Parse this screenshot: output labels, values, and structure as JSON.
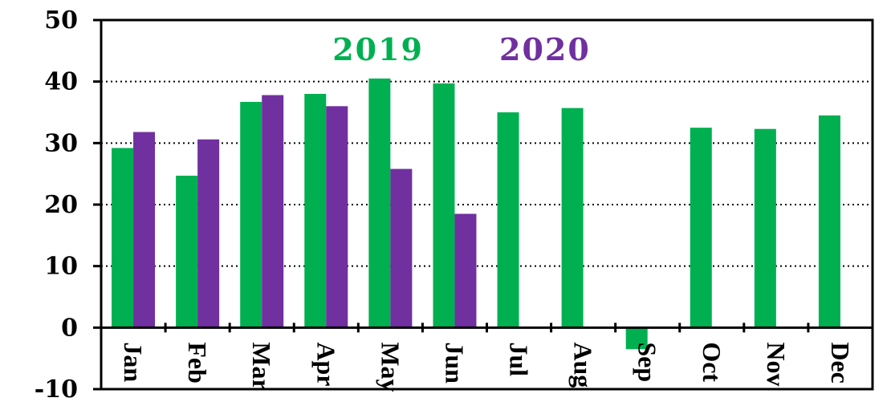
{
  "chart_data": {
    "type": "bar",
    "categories": [
      "Jan",
      "Feb",
      "Mar",
      "Apr",
      "May",
      "Jun",
      "Jul",
      "Aug",
      "Sep",
      "Oct",
      "Nov",
      "Dec"
    ],
    "series": [
      {
        "name": "2019",
        "color": "#00b050",
        "values": [
          29.2,
          24.7,
          36.7,
          38.0,
          40.5,
          39.7,
          35.0,
          35.7,
          -3.5,
          32.5,
          32.3,
          34.5
        ]
      },
      {
        "name": "2020",
        "color": "#7030a0",
        "values": [
          31.8,
          30.6,
          37.8,
          36.0,
          25.8,
          18.5,
          null,
          null,
          null,
          null,
          null,
          null
        ]
      }
    ],
    "ylim": [
      -10,
      50
    ],
    "yticks": [
      "50",
      "40",
      "30",
      "20",
      "10",
      "0",
      "-10"
    ],
    "grid": "dotted horizontal",
    "legend_placement": "top-center"
  }
}
